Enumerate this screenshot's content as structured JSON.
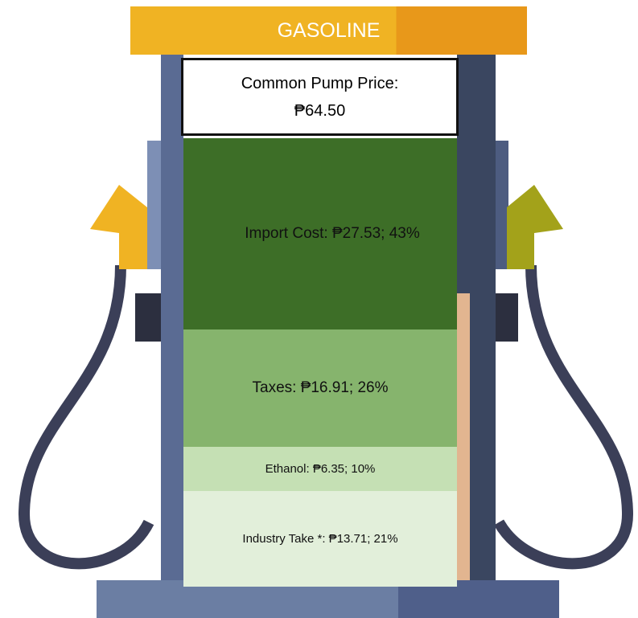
{
  "chart_data": {
    "type": "stacked-column",
    "title": "GASOLINE",
    "subtitle": "Common Pump Price: ₱64.50",
    "values": [
      27.53,
      16.91,
      6.35,
      13.71
    ],
    "value_labels": [
      "Import Cost: ₱27.53; 43%",
      "Taxes: ₱16.91; 26%",
      "Ethanol: ₱6.35; 10%",
      "Industry Take *: ₱13.71; 21%"
    ],
    "colors": [
      "#3d6e27",
      "#86b46d",
      "#c5e0b4",
      "#e2efda"
    ],
    "ylim": [
      0,
      64.5
    ]
  }
}
